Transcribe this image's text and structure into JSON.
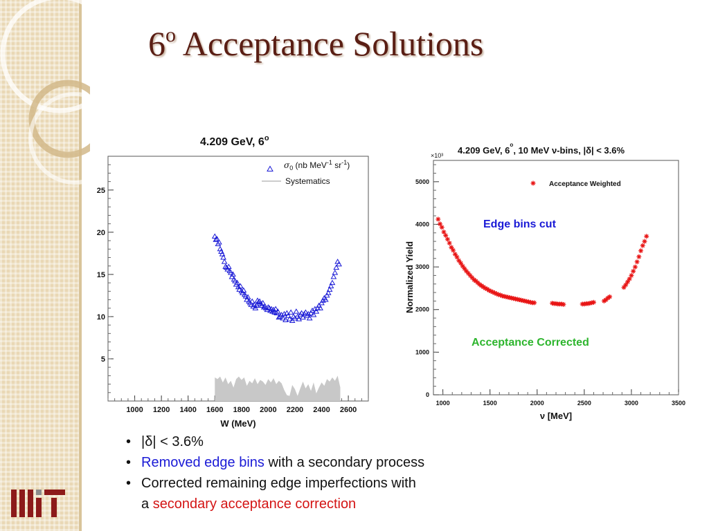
{
  "slide": {
    "title_number": "6",
    "title_degree": "o",
    "title_rest": " Acceptance Solutions",
    "bullets": [
      {
        "text": "|δ| < 3.6%"
      },
      {
        "highlight": "Removed edge bins",
        "text": " with a secondary process"
      },
      {
        "text": "Corrected remaining edge imperfections with",
        "prefix": "a ",
        "highlight": "secondary acceptance correction"
      }
    ],
    "colors": {
      "title": "#5a1e14",
      "highlight_blue": "#1a1ad6",
      "highlight_red": "#d41414",
      "sidebar": "#e9d8b5"
    },
    "logo": "MIT logo"
  },
  "chart_data": [
    {
      "type": "scatter",
      "title": "4.209 GeV, 6",
      "title_degree": "o",
      "xlabel": "W (MeV)",
      "ylabel": "",
      "xlim": [
        800,
        2750
      ],
      "ylim": [
        0,
        29
      ],
      "xticks": [
        1000,
        1200,
        1400,
        1600,
        1800,
        2000,
        2200,
        2400,
        2600
      ],
      "yticks": [
        5,
        10,
        15,
        20,
        25
      ],
      "legend_position": "top-right",
      "series": [
        {
          "name": "σ0 (nb MeV-1 sr-1)",
          "legend_html": "<tspan font-family=\"DejaVu Serif, serif\" font-style=\"italic\">σ</tspan><tspan font-size=\"9\" dy=\"3\">0</tspan><tspan dy=\"-3\"> (nb MeV</tspan><tspan font-size=\"9\" dy=\"-5\">-1</tspan><tspan dy=\"5\"> sr</tspan><tspan font-size=\"9\" dy=\"-5\">-1</tspan><tspan dy=\"5\">)</tspan>",
          "marker": "open-triangle",
          "color": "#1a1ad6",
          "points": [
            [
              1600,
              19.5
            ],
            [
              1608,
              19.1
            ],
            [
              1616,
              19.2
            ],
            [
              1624,
              18.6
            ],
            [
              1632,
              18.8
            ],
            [
              1640,
              18.0
            ],
            [
              1648,
              17.7
            ],
            [
              1656,
              17.4
            ],
            [
              1664,
              17.0
            ],
            [
              1672,
              16.5
            ],
            [
              1680,
              15.9
            ],
            [
              1688,
              15.8
            ],
            [
              1696,
              15.6
            ],
            [
              1704,
              15.9
            ],
            [
              1712,
              15.4
            ],
            [
              1720,
              15.2
            ],
            [
              1728,
              14.7
            ],
            [
              1736,
              15.0
            ],
            [
              1744,
              14.4
            ],
            [
              1752,
              14.2
            ],
            [
              1760,
              13.8
            ],
            [
              1768,
              14.0
            ],
            [
              1776,
              13.5
            ],
            [
              1784,
              13.2
            ],
            [
              1792,
              13.6
            ],
            [
              1800,
              13.0
            ],
            [
              1808,
              12.8
            ],
            [
              1816,
              13.1
            ],
            [
              1824,
              12.6
            ],
            [
              1832,
              12.4
            ],
            [
              1840,
              12.0
            ],
            [
              1848,
              12.3
            ],
            [
              1856,
              11.8
            ],
            [
              1864,
              11.6
            ],
            [
              1872,
              11.4
            ],
            [
              1880,
              11.8
            ],
            [
              1888,
              11.2
            ],
            [
              1896,
              11.4
            ],
            [
              1904,
              11.0
            ],
            [
              1912,
              11.3
            ],
            [
              1920,
              11.9
            ],
            [
              1928,
              11.7
            ],
            [
              1936,
              11.8
            ],
            [
              1944,
              11.5
            ],
            [
              1952,
              11.3
            ],
            [
              1960,
              11.6
            ],
            [
              1968,
              11.1
            ],
            [
              1976,
              11.2
            ],
            [
              1984,
              11.0
            ],
            [
              1992,
              10.8
            ],
            [
              2000,
              11.1
            ],
            [
              2008,
              11.0
            ],
            [
              2016,
              10.7
            ],
            [
              2024,
              10.9
            ],
            [
              2032,
              10.6
            ],
            [
              2040,
              10.8
            ],
            [
              2048,
              10.5
            ],
            [
              2056,
              10.9
            ],
            [
              2064,
              10.4
            ],
            [
              2072,
              10.6
            ],
            [
              2080,
              9.9
            ],
            [
              2090,
              10.0
            ],
            [
              2100,
              10.2
            ],
            [
              2110,
              9.8
            ],
            [
              2120,
              10.3
            ],
            [
              2130,
              9.6
            ],
            [
              2140,
              10.4
            ],
            [
              2150,
              10.1
            ],
            [
              2160,
              9.7
            ],
            [
              2170,
              10.5
            ],
            [
              2180,
              9.5
            ],
            [
              2190,
              10.0
            ],
            [
              2200,
              9.8
            ],
            [
              2210,
              10.6
            ],
            [
              2220,
              10.0
            ],
            [
              2230,
              9.7
            ],
            [
              2240,
              10.2
            ],
            [
              2250,
              10.4
            ],
            [
              2260,
              9.9
            ],
            [
              2270,
              10.3
            ],
            [
              2280,
              10.5
            ],
            [
              2290,
              10.1
            ],
            [
              2300,
              10.3
            ],
            [
              2310,
              9.8
            ],
            [
              2320,
              10.4
            ],
            [
              2330,
              10.7
            ],
            [
              2340,
              10.2
            ],
            [
              2350,
              10.9
            ],
            [
              2360,
              10.6
            ],
            [
              2370,
              11.0
            ],
            [
              2380,
              11.3
            ],
            [
              2390,
              11.0
            ],
            [
              2400,
              11.6
            ],
            [
              2410,
              11.9
            ],
            [
              2420,
              12.2
            ],
            [
              2430,
              12.0
            ],
            [
              2440,
              12.5
            ],
            [
              2450,
              12.8
            ],
            [
              2460,
              13.2
            ],
            [
              2470,
              13.6
            ],
            [
              2480,
              14.0
            ],
            [
              2490,
              14.7
            ],
            [
              2500,
              15.2
            ],
            [
              2510,
              15.8
            ],
            [
              2520,
              16.5
            ],
            [
              2530,
              16.2
            ]
          ]
        },
        {
          "name": "Systematics",
          "marker": "filled-area",
          "color": "#c8c8c8",
          "points": [
            [
              1600,
              2.8
            ],
            [
              1620,
              2.6
            ],
            [
              1640,
              2.9
            ],
            [
              1660,
              2.2
            ],
            [
              1680,
              2.8
            ],
            [
              1700,
              2.0
            ],
            [
              1720,
              2.4
            ],
            [
              1740,
              1.6
            ],
            [
              1760,
              2.6
            ],
            [
              1780,
              2.9
            ],
            [
              1800,
              2.5
            ],
            [
              1820,
              2.8
            ],
            [
              1840,
              1.8
            ],
            [
              1860,
              2.4
            ],
            [
              1880,
              2.1
            ],
            [
              1900,
              2.7
            ],
            [
              1920,
              2.0
            ],
            [
              1940,
              2.5
            ],
            [
              1960,
              2.3
            ],
            [
              1980,
              1.9
            ],
            [
              2000,
              2.6
            ],
            [
              2020,
              2.2
            ],
            [
              2040,
              2.7
            ],
            [
              2060,
              2.0
            ],
            [
              2080,
              2.4
            ],
            [
              2100,
              2.1
            ],
            [
              2120,
              1.3
            ],
            [
              2140,
              0.7
            ],
            [
              2160,
              0.6
            ],
            [
              2180,
              1.9
            ],
            [
              2200,
              1.4
            ],
            [
              2220,
              0.6
            ],
            [
              2240,
              1.5
            ],
            [
              2260,
              2.3
            ],
            [
              2280,
              1.5
            ],
            [
              2300,
              2.0
            ],
            [
              2320,
              1.2
            ],
            [
              2340,
              2.2
            ],
            [
              2360,
              0.9
            ],
            [
              2380,
              1.6
            ],
            [
              2400,
              2.2
            ],
            [
              2420,
              1.8
            ],
            [
              2440,
              2.6
            ],
            [
              2460,
              2.3
            ],
            [
              2480,
              2.8
            ],
            [
              2500,
              2.4
            ],
            [
              2520,
              3.0
            ],
            [
              2540,
              1.6
            ]
          ]
        }
      ]
    },
    {
      "type": "scatter",
      "title": "4.209 GeV, 6",
      "title_degree": "o",
      "title_rest": ", 10 MeV ν-bins, |δ| < 3.6%",
      "xlabel": "ν [MeV]",
      "ylabel": "Normalized Yield",
      "y_multiplier": "×10³",
      "xlim": [
        900,
        3500
      ],
      "ylim": [
        0,
        5500
      ],
      "xticks": [
        1000,
        1500,
        2000,
        2500,
        3000,
        3500
      ],
      "yticks": [
        0,
        1000,
        2000,
        3000,
        4000,
        5000
      ],
      "legend_position": "top-right",
      "annotations": [
        {
          "text": "Edge bins cut",
          "color": "#1a1ad6"
        },
        {
          "text": "Acceptance Corrected",
          "color": "#2db52d"
        }
      ],
      "series": [
        {
          "name": "Acceptance Weighted",
          "marker": "star",
          "color": "#e81414",
          "points": [
            [
              950,
              4120
            ],
            [
              970,
              4010
            ],
            [
              990,
              3930
            ],
            [
              1010,
              3820
            ],
            [
              1030,
              3740
            ],
            [
              1050,
              3650
            ],
            [
              1070,
              3560
            ],
            [
              1090,
              3460
            ],
            [
              1110,
              3390
            ],
            [
              1130,
              3300
            ],
            [
              1150,
              3230
            ],
            [
              1170,
              3150
            ],
            [
              1190,
              3090
            ],
            [
              1210,
              3020
            ],
            [
              1230,
              2960
            ],
            [
              1250,
              2900
            ],
            [
              1270,
              2850
            ],
            [
              1290,
              2800
            ],
            [
              1310,
              2750
            ],
            [
              1330,
              2700
            ],
            [
              1350,
              2670
            ],
            [
              1370,
              2630
            ],
            [
              1390,
              2590
            ],
            [
              1410,
              2560
            ],
            [
              1430,
              2530
            ],
            [
              1450,
              2500
            ],
            [
              1470,
              2480
            ],
            [
              1490,
              2450
            ],
            [
              1510,
              2430
            ],
            [
              1530,
              2410
            ],
            [
              1550,
              2390
            ],
            [
              1570,
              2370
            ],
            [
              1590,
              2350
            ],
            [
              1610,
              2340
            ],
            [
              1630,
              2320
            ],
            [
              1650,
              2310
            ],
            [
              1670,
              2300
            ],
            [
              1690,
              2290
            ],
            [
              1710,
              2280
            ],
            [
              1730,
              2270
            ],
            [
              1750,
              2260
            ],
            [
              1770,
              2250
            ],
            [
              1790,
              2240
            ],
            [
              1810,
              2230
            ],
            [
              1830,
              2220
            ],
            [
              1850,
              2210
            ],
            [
              1870,
              2200
            ],
            [
              1890,
              2190
            ],
            [
              1910,
              2180
            ],
            [
              1930,
              2170
            ],
            [
              1950,
              2160
            ],
            [
              1970,
              2160
            ],
            [
              2160,
              2150
            ],
            [
              2180,
              2140
            ],
            [
              2200,
              2140
            ],
            [
              2220,
              2130
            ],
            [
              2240,
              2130
            ],
            [
              2260,
              2130
            ],
            [
              2280,
              2120
            ],
            [
              2480,
              2130
            ],
            [
              2500,
              2130
            ],
            [
              2520,
              2140
            ],
            [
              2540,
              2140
            ],
            [
              2560,
              2150
            ],
            [
              2580,
              2160
            ],
            [
              2600,
              2170
            ],
            [
              2710,
              2200
            ],
            [
              2730,
              2230
            ],
            [
              2750,
              2270
            ],
            [
              2770,
              2300
            ],
            [
              2920,
              2520
            ],
            [
              2940,
              2580
            ],
            [
              2960,
              2650
            ],
            [
              2980,
              2720
            ],
            [
              3000,
              2800
            ],
            [
              3020,
              2900
            ],
            [
              3040,
              3000
            ],
            [
              3060,
              3120
            ],
            [
              3080,
              3240
            ],
            [
              3100,
              3380
            ],
            [
              3120,
              3500
            ],
            [
              3140,
              3600
            ],
            [
              3160,
              3720
            ]
          ]
        }
      ]
    }
  ]
}
